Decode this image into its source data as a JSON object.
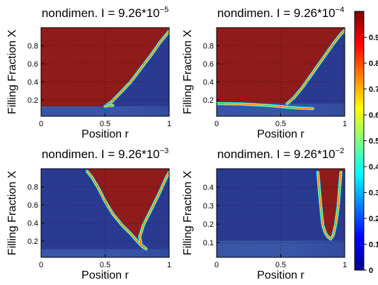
{
  "chart_data": [
    {
      "type": "heatmap",
      "title": "nondimen. I = 9.26*10",
      "title_exponent": "−5",
      "xlabel": "Position r",
      "ylabel": "Filling Fraction X",
      "xlim": [
        0,
        1
      ],
      "ylim": [
        0.02,
        1.0
      ],
      "xticks": [
        0,
        0.5,
        1
      ],
      "xtick_labels": [
        "0",
        "0.5",
        "1"
      ],
      "yticks": [
        0.2,
        0.4,
        0.6,
        0.8
      ],
      "ytick_labels": [
        "0.2",
        "0.4",
        "0.6",
        "0.8"
      ],
      "grid": true,
      "plateau_upper_bound_X": 0.13,
      "front_r": [
        0.5,
        0.55,
        0.62,
        0.7,
        0.78,
        0.86,
        0.93,
        1.0
      ],
      "front_X": [
        0.13,
        0.18,
        0.28,
        0.4,
        0.55,
        0.7,
        0.84,
        0.96
      ],
      "low_X_tail_r": [
        0.5,
        0.53,
        0.56
      ],
      "low_X_tail_X": [
        0.13,
        0.14,
        0.14
      ]
    },
    {
      "type": "heatmap",
      "title": "nondimen. I = 9.26*10",
      "title_exponent": "−4",
      "xlabel": "Position r",
      "ylabel": "Filling Fraction X",
      "xlim": [
        0,
        1
      ],
      "ylim": [
        0.02,
        1.0
      ],
      "xticks": [
        0,
        0.5,
        1
      ],
      "xtick_labels": [
        "0",
        "0.5",
        "1"
      ],
      "yticks": [
        0.2,
        0.4,
        0.6,
        0.8
      ],
      "ytick_labels": [
        "0.2",
        "0.4",
        "0.6",
        "0.8"
      ],
      "grid": true,
      "plateau_upper_bound_X": 0.16,
      "front_r": [
        0.55,
        0.6,
        0.67,
        0.75,
        0.83,
        0.91,
        0.97,
        1.0
      ],
      "front_X": [
        0.16,
        0.22,
        0.34,
        0.5,
        0.66,
        0.82,
        0.93,
        0.97
      ],
      "low_X_tail_r": [
        0.0,
        0.2,
        0.4,
        0.55,
        0.65,
        0.75
      ],
      "low_X_tail_X": [
        0.16,
        0.155,
        0.14,
        0.12,
        0.11,
        0.105
      ]
    },
    {
      "type": "heatmap",
      "title": "nondimen. I = 9.26*10",
      "title_exponent": "−3",
      "xlabel": "Position r",
      "ylabel": "Filling Fraction X",
      "xlim": [
        0,
        1
      ],
      "ylim": [
        0.02,
        1.0
      ],
      "xticks": [
        0,
        0.5,
        1
      ],
      "xtick_labels": [
        "0",
        "0.5",
        "1"
      ],
      "yticks": [
        0.2,
        0.4,
        0.6,
        0.8
      ],
      "ytick_labels": [
        "0.2",
        "0.4",
        "0.6",
        "0.8"
      ],
      "grid": true,
      "plateau_upper_bound_X": 0.11,
      "left_front_r": [
        0.36,
        0.4,
        0.45,
        0.5,
        0.56,
        0.63,
        0.7,
        0.75,
        0.79,
        0.82
      ],
      "left_front_X": [
        0.97,
        0.9,
        0.78,
        0.64,
        0.5,
        0.38,
        0.28,
        0.2,
        0.14,
        0.115
      ],
      "right_front_r": [
        0.82,
        0.78,
        0.77,
        0.8,
        0.86,
        0.92,
        0.97,
        1.0
      ],
      "right_front_X": [
        0.115,
        0.16,
        0.25,
        0.38,
        0.55,
        0.72,
        0.88,
        0.96
      ]
    },
    {
      "type": "heatmap",
      "title": "nondimen. I = 9.26*10",
      "title_exponent": "−2",
      "xlabel": "Position r",
      "ylabel": "Filling Fraction X",
      "xlim": [
        0,
        1
      ],
      "ylim": [
        0.02,
        0.5
      ],
      "xticks": [
        0,
        0.5,
        1
      ],
      "xtick_labels": [
        "0",
        "0.5",
        "1"
      ],
      "yticks": [
        0.1,
        0.2,
        0.3,
        0.4
      ],
      "ytick_labels": [
        "0.1",
        "0.2",
        "0.3",
        "0.4"
      ],
      "grid": true,
      "plateau_upper_bound_X": 0.11,
      "left_front_r": [
        0.79,
        0.8,
        0.81,
        0.82,
        0.83,
        0.85,
        0.87,
        0.89
      ],
      "left_front_X": [
        0.48,
        0.4,
        0.32,
        0.25,
        0.19,
        0.15,
        0.13,
        0.12
      ],
      "right_front_r": [
        0.89,
        0.91,
        0.93,
        0.95,
        0.96,
        0.97
      ],
      "right_front_X": [
        0.12,
        0.14,
        0.2,
        0.3,
        0.4,
        0.48
      ]
    }
  ],
  "colorbar": {
    "min": 0,
    "max": 1,
    "ticks": [
      0,
      0.1,
      0.2,
      0.3,
      0.4,
      0.5,
      0.6,
      0.7,
      0.8,
      0.9
    ],
    "tick_labels": [
      "0",
      "0.1",
      "0.2",
      "0.3",
      "0.4",
      "0.5",
      "0.6",
      "0.7",
      "0.8",
      "0.9"
    ],
    "colormap": "jet",
    "low_color": "#2b3a91",
    "high_color": "#8f1b1b"
  }
}
